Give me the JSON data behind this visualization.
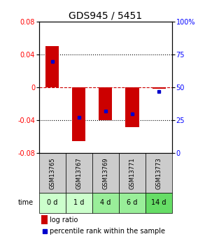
{
  "title": "GDS945 / 5451",
  "samples": [
    "GSM13765",
    "GSM13767",
    "GSM13769",
    "GSM13771",
    "GSM13773"
  ],
  "time_labels": [
    "0 d",
    "1 d",
    "4 d",
    "6 d",
    "14 d"
  ],
  "log_ratios": [
    0.05,
    -0.065,
    -0.04,
    -0.048,
    -0.002
  ],
  "percentile_ranks": [
    70,
    27,
    32,
    30,
    47
  ],
  "ylim": [
    -0.08,
    0.08
  ],
  "yticks_left": [
    -0.08,
    -0.04,
    0,
    0.04,
    0.08
  ],
  "yticks_right": [
    0,
    25,
    50,
    75,
    100
  ],
  "bar_color": "#cc0000",
  "dot_color": "#0000cc",
  "zero_line_color": "#cc0000",
  "title_fontsize": 10,
  "tick_fontsize": 7,
  "gsm_bg_color": "#cccccc",
  "time_bg_colors": [
    "#ccffcc",
    "#ccffcc",
    "#99ee99",
    "#99ee99",
    "#66dd66"
  ],
  "legend_log_ratio_color": "#cc0000",
  "legend_percentile_color": "#0000cc"
}
